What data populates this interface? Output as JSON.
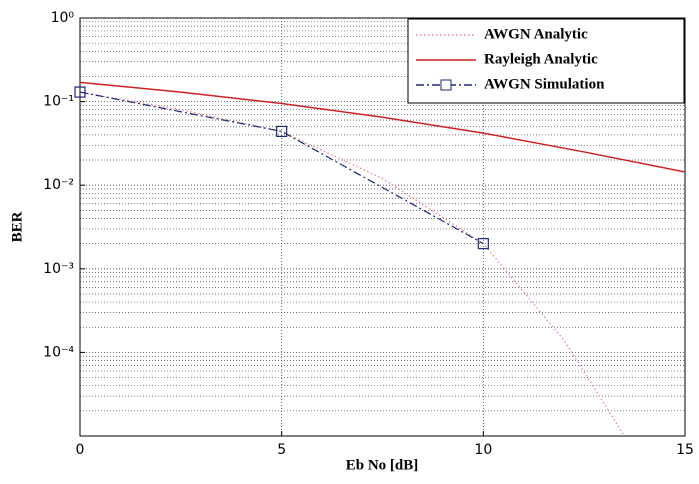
{
  "chart_data": {
    "type": "line",
    "xlabel": "Eb No [dB]",
    "ylabel": "BER",
    "xlim": [
      0,
      15
    ],
    "xticks": [
      0,
      5,
      10,
      15
    ],
    "ylim": [
      1e-05,
      1
    ],
    "log_y": true,
    "yticks": [
      {
        "value": 1,
        "label": "10⁰"
      },
      {
        "value": 0.1,
        "label": "10⁻¹"
      },
      {
        "value": 0.01,
        "label": "10⁻²"
      },
      {
        "value": 0.001,
        "label": "10⁻³"
      },
      {
        "value": 0.0001,
        "label": "10⁻⁴"
      }
    ],
    "grid": true,
    "legend": "upper right",
    "series": [
      {
        "name": "AWGN Analytic",
        "color": "#e8808a",
        "style": "dotted",
        "x": [
          0,
          2.5,
          5,
          7.5,
          10,
          12,
          13.5
        ],
        "values": [
          0.13,
          0.08,
          0.044,
          0.012,
          0.002,
          0.00014,
          1e-05
        ]
      },
      {
        "name": "Rayleigh Analytic",
        "color": "#cc2222",
        "style": "solid",
        "x": [
          0,
          2.5,
          5,
          7.5,
          10,
          12.5,
          15
        ],
        "values": [
          0.17,
          0.13,
          0.095,
          0.065,
          0.042,
          0.025,
          0.0144
        ]
      },
      {
        "name": "AWGN Simulation",
        "color": "#1a2a7a",
        "style": "dashed",
        "marker": "square",
        "x": [
          0,
          5,
          10
        ],
        "values": [
          0.13,
          0.044,
          0.002
        ]
      }
    ]
  }
}
